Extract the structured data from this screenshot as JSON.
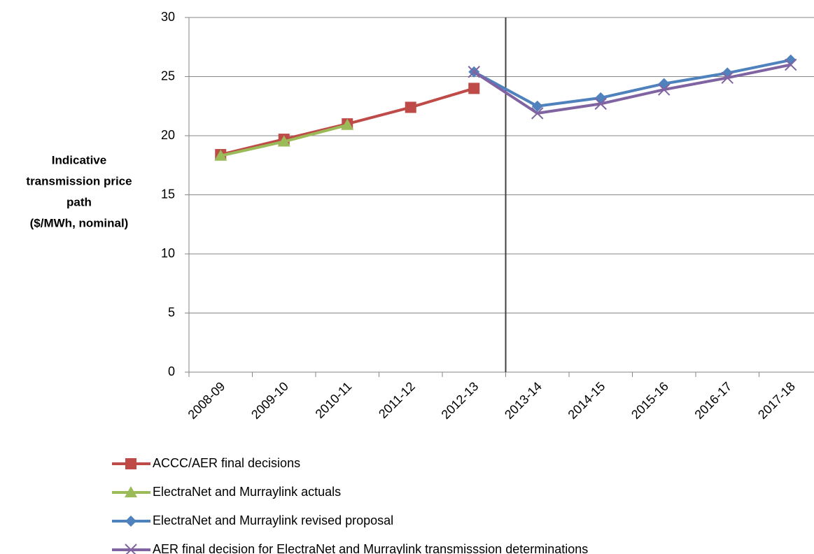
{
  "chart_data": {
    "type": "line",
    "y_label": [
      "Indicative",
      "transmission price",
      "path",
      "($/MWh, nominal)"
    ],
    "categories": [
      "2008-09",
      "2009-10",
      "2010-11",
      "2011-12",
      "2012-13",
      "2013-14",
      "2014-15",
      "2015-16",
      "2016-17",
      "2017-18"
    ],
    "series": [
      {
        "name": "ACCC/AER final decisions",
        "color": "#be4b48",
        "marker": "square",
        "values": [
          18.4,
          19.7,
          21.0,
          22.4,
          24.0,
          null,
          null,
          null,
          null,
          null
        ]
      },
      {
        "name": "ElectraNet and Murraylink actuals",
        "color": "#9bbb59",
        "marker": "triangle",
        "values": [
          18.3,
          19.5,
          20.9,
          null,
          null,
          null,
          null,
          null,
          null,
          null
        ]
      },
      {
        "name": "ElectraNet and Murraylink revised proposal",
        "color": "#4f81bd",
        "marker": "diamond",
        "values": [
          null,
          null,
          null,
          null,
          25.4,
          22.5,
          23.2,
          24.4,
          25.3,
          26.4
        ]
      },
      {
        "name": "AER final decision for ElectraNet and Murraylink transmisssion determinations",
        "color": "#8064a2",
        "marker": "x",
        "values": [
          null,
          null,
          null,
          null,
          25.4,
          21.9,
          22.7,
          23.9,
          24.9,
          26.0
        ]
      }
    ],
    "ylim": [
      0,
      30
    ],
    "yticks": [
      0,
      5,
      10,
      15,
      20,
      25,
      30
    ],
    "grid": true
  }
}
